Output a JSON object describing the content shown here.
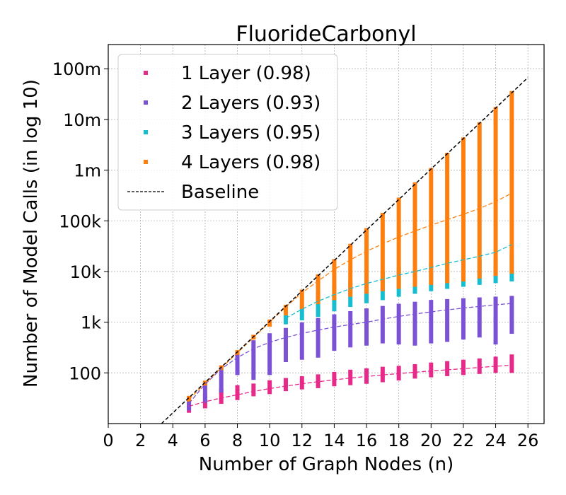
{
  "chart_data": {
    "type": "scatter",
    "title": "FluorideCarbonyl",
    "xlabel": "Number of Graph Nodes (n)",
    "ylabel": "Number of Model Calls (in log 10)",
    "xlim": [
      0,
      27
    ],
    "ylim": [
      10,
      300000000
    ],
    "yscale": "log",
    "grid": true,
    "legend_position": "top-left",
    "x_ticks": [
      0,
      2,
      4,
      6,
      8,
      10,
      12,
      14,
      16,
      18,
      20,
      22,
      24,
      26
    ],
    "y_ticks": [
      {
        "value": 100,
        "label": "100"
      },
      {
        "value": 1000,
        "label": "1k"
      },
      {
        "value": 10000,
        "label": "10k"
      },
      {
        "value": 100000,
        "label": "100k"
      },
      {
        "value": 1000000,
        "label": "1m"
      },
      {
        "value": 10000000,
        "label": "10m"
      },
      {
        "value": 100000000,
        "label": "100m"
      }
    ],
    "series": [
      {
        "name": "1 Layer (0.98)",
        "color": "#e7298a",
        "x": [
          5,
          6,
          7,
          8,
          9,
          10,
          11,
          12,
          13,
          14,
          15,
          16,
          17,
          18,
          19,
          20,
          21,
          22,
          23,
          24,
          25
        ],
        "min": [
          18,
          22,
          27,
          32,
          38,
          42,
          48,
          52,
          55,
          60,
          63,
          67,
          72,
          78,
          85,
          90,
          95,
          100,
          105,
          110,
          110
        ],
        "max": [
          30,
          35,
          45,
          52,
          56,
          65,
          72,
          78,
          85,
          95,
          105,
          112,
          120,
          125,
          135,
          145,
          155,
          165,
          175,
          190,
          210
        ],
        "fit": [
          22,
          27,
          32,
          37,
          43,
          49,
          55,
          61,
          67,
          73,
          79,
          85,
          91,
          97,
          103,
          109,
          115,
          121,
          128,
          135,
          142
        ]
      },
      {
        "name": "2 Layers (0.93)",
        "color": "#7b52d6",
        "x": [
          5,
          6,
          7,
          8,
          9,
          10,
          11,
          12,
          13,
          14,
          15,
          16,
          17,
          18,
          19,
          20,
          21,
          22,
          23,
          24,
          25
        ],
        "min": [
          20,
          28,
          45,
          100,
          80,
          100,
          180,
          200,
          220,
          300,
          350,
          380,
          420,
          400,
          380,
          420,
          450,
          500,
          550,
          400,
          650
        ],
        "max": [
          30,
          60,
          120,
          250,
          400,
          550,
          700,
          900,
          1100,
          1300,
          1500,
          1700,
          1900,
          2100,
          2300,
          2500,
          2600,
          2700,
          2800,
          2900,
          3000
        ],
        "fit": [
          25,
          60,
          120,
          200,
          300,
          400,
          500,
          600,
          700,
          800,
          900,
          1000,
          1150,
          1300,
          1450,
          1600,
          1750,
          1900,
          2050,
          2200,
          2350
        ]
      },
      {
        "name": "3 Layers (0.95)",
        "color": "#17becf",
        "x": [
          11,
          12,
          13,
          14,
          15,
          16,
          17,
          18,
          19,
          20,
          21,
          22,
          23,
          24,
          25
        ],
        "min": [
          1000,
          1200,
          1400,
          1800,
          2200,
          2600,
          3000,
          3500,
          4000,
          4500,
          5000,
          5500,
          6000,
          6500,
          7000
        ],
        "max": [
          1300,
          2000,
          3500,
          5000,
          6000,
          7500,
          9000,
          11000,
          12000,
          13000,
          14000,
          15000,
          16000,
          17000,
          20000
        ],
        "fit": [
          1200,
          1800,
          2600,
          3500,
          4600,
          5800,
          7000,
          8500,
          10000,
          12000,
          14500,
          17000,
          20000,
          24000,
          34000
        ]
      },
      {
        "name": "4 Layers (0.98)",
        "color": "#ff7f0e",
        "x": [
          5,
          6,
          7,
          8,
          9,
          10,
          11,
          12,
          13,
          14,
          15,
          16,
          17,
          18,
          19,
          20,
          21,
          22,
          23,
          24,
          25
        ],
        "min": [
          30,
          62,
          125,
          250,
          500,
          900,
          1500,
          2000,
          2500,
          3000,
          3500,
          4000,
          4500,
          5000,
          5500,
          6000,
          6500,
          7000,
          8000,
          9000,
          10000
        ],
        "max": [
          32,
          64,
          128,
          256,
          512,
          1024,
          2000,
          4000,
          8000,
          16000,
          32000,
          65000,
          130000,
          260000,
          520000,
          1000000,
          2000000,
          4000000,
          8000000,
          16000000,
          33000000
        ],
        "fit": [
          30,
          62,
          125,
          250,
          500,
          1000,
          2000,
          3800,
          6500,
          11000,
          17000,
          25000,
          35000,
          48000,
          63000,
          82000,
          105000,
          135000,
          175000,
          240000,
          350000
        ]
      }
    ],
    "baseline": {
      "name": "Baseline",
      "color": "#000000",
      "x": [
        3.3,
        26
      ],
      "y": [
        10,
        67000000
      ]
    }
  }
}
